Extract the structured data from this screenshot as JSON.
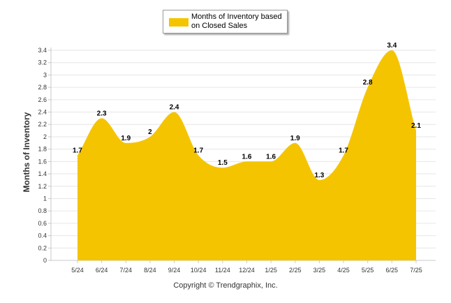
{
  "chart_data": {
    "type": "area",
    "categories": [
      "5/24",
      "6/24",
      "7/24",
      "8/24",
      "9/24",
      "10/24",
      "11/24",
      "12/24",
      "1/25",
      "2/25",
      "3/25",
      "4/25",
      "5/25",
      "6/25",
      "7/25"
    ],
    "series": [
      {
        "name": "Months of Inventory based on Closed Sales",
        "values": [
          1.7,
          2.3,
          1.9,
          2,
          2.4,
          1.7,
          1.5,
          1.6,
          1.6,
          1.9,
          1.3,
          1.7,
          2.8,
          3.4,
          2.1
        ]
      }
    ],
    "data_labels": [
      "1.7",
      "2.3",
      "1.9",
      "2",
      "2.4",
      "1.7",
      "1.5",
      "1.6",
      "1.6",
      "1.9",
      "1.3",
      "1.7",
      "2.8",
      "3.4",
      "2.1"
    ],
    "y_ticks": [
      "0",
      "0.2",
      "0.4",
      "0.6",
      "0.8",
      "1",
      "1.2",
      "1.4",
      "1.6",
      "1.8",
      "2",
      "2.2",
      "2.4",
      "2.6",
      "2.8",
      "3",
      "3.2",
      "3.4"
    ],
    "ylabel": "Months of Inventory",
    "xlabel": "",
    "ylim": [
      0,
      3.4
    ],
    "grid": true,
    "legend_position": "top-center"
  },
  "colors": {
    "series_fill": "#f5c400",
    "grid": "#e6e6e6",
    "axis": "#c8c8c8"
  },
  "copyright": "Copyright © Trendgraphix, Inc."
}
